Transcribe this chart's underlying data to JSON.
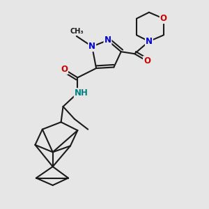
{
  "bg_color": "#e6e6e6",
  "bond_color": "#1a1a1a",
  "bond_width": 1.5,
  "dbo": 0.12,
  "atom_colors": {
    "N": "#0000cc",
    "O": "#cc0000",
    "NH": "#008080",
    "C": "#1a1a1a"
  },
  "fs": 8.5,
  "fig_size": [
    3.0,
    3.0
  ],
  "dpi": 100,
  "xlim": [
    0,
    10
  ],
  "ylim": [
    0,
    10
  ]
}
